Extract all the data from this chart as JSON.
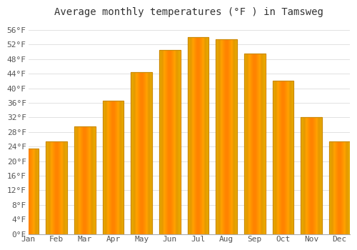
{
  "months": [
    "Jan",
    "Feb",
    "Mar",
    "Apr",
    "May",
    "Jun",
    "Jul",
    "Aug",
    "Sep",
    "Oct",
    "Nov",
    "Dec"
  ],
  "values": [
    23.5,
    25.5,
    29.5,
    36.5,
    44.5,
    50.5,
    54.0,
    53.5,
    49.5,
    42.0,
    32.0,
    25.5
  ],
  "bar_color_main": "#FFAA00",
  "bar_color_edge": "#CC8800",
  "bar_color_light": "#FFD060",
  "title": "Average monthly temperatures (°F ) in Tamsweg",
  "ylim": [
    0,
    58
  ],
  "yticks": [
    0,
    4,
    8,
    12,
    16,
    20,
    24,
    28,
    32,
    36,
    40,
    44,
    48,
    52,
    56
  ],
  "ytick_labels": [
    "0°F",
    "4°F",
    "8°F",
    "12°F",
    "16°F",
    "20°F",
    "24°F",
    "28°F",
    "32°F",
    "36°F",
    "40°F",
    "44°F",
    "48°F",
    "52°F",
    "56°F"
  ],
  "background_color": "#FFFFFF",
  "grid_color": "#DDDDDD",
  "title_fontsize": 10,
  "tick_fontsize": 8,
  "bar_width": 0.75
}
